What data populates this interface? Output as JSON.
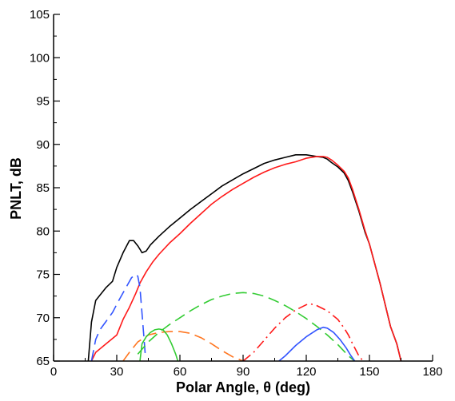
{
  "chart_data": {
    "type": "line",
    "xlabel": "Polar Angle, θ (deg)",
    "ylabel": "PNLT, dB",
    "xlim": [
      0,
      180
    ],
    "ylim": [
      65,
      105
    ],
    "xticks": [
      0,
      30,
      60,
      90,
      120,
      150,
      180
    ],
    "yticks": [
      65,
      70,
      75,
      80,
      85,
      90,
      95,
      100,
      105
    ],
    "grid": false,
    "legend": "none",
    "series": [
      {
        "color": "#000000",
        "dash": "solid",
        "x": [
          16.5,
          18,
          20,
          25,
          28,
          30,
          33,
          36,
          38,
          40,
          41,
          42,
          44,
          46,
          48,
          50,
          55,
          60,
          65,
          70,
          75,
          80,
          85,
          90,
          95,
          100,
          105,
          110,
          115,
          120,
          125,
          128,
          130,
          132,
          135,
          138,
          140,
          142,
          145,
          148,
          150,
          155,
          160,
          163,
          165
        ],
        "y": [
          65.0,
          69.5,
          72.0,
          73.5,
          74.2,
          75.8,
          77.5,
          78.9,
          78.9,
          78.3,
          77.9,
          77.5,
          77.7,
          78.4,
          78.9,
          79.4,
          80.5,
          81.5,
          82.5,
          83.4,
          84.3,
          85.2,
          85.9,
          86.6,
          87.2,
          87.8,
          88.2,
          88.5,
          88.8,
          88.8,
          88.6,
          88.5,
          88.3,
          87.9,
          87.4,
          86.7,
          85.8,
          84.5,
          82.3,
          79.8,
          78.5,
          74.0,
          69.0,
          67.0,
          65.0
        ]
      },
      {
        "color": "#ff1a1a",
        "dash": "solid",
        "x": [
          18,
          20,
          25,
          30,
          33,
          36,
          39,
          41,
          44,
          47,
          50,
          55,
          60,
          65,
          70,
          75,
          80,
          85,
          90,
          95,
          100,
          105,
          110,
          115,
          120,
          125,
          128,
          130,
          132,
          135,
          138,
          140,
          142,
          145,
          148,
          150,
          155,
          160,
          163,
          165
        ],
        "y": [
          65.0,
          66.0,
          67.0,
          68.0,
          69.8,
          71.2,
          72.8,
          74.0,
          75.3,
          76.4,
          77.3,
          78.6,
          79.7,
          80.9,
          82.0,
          83.1,
          84.0,
          84.8,
          85.5,
          86.2,
          86.8,
          87.3,
          87.7,
          88.0,
          88.4,
          88.6,
          88.6,
          88.5,
          88.2,
          87.6,
          86.9,
          86.1,
          84.8,
          82.5,
          80.0,
          78.5,
          74.0,
          69.0,
          67.0,
          65.0
        ]
      },
      {
        "color": "#3355ff",
        "dash": "dash",
        "x": [
          18,
          20,
          22,
          25,
          28,
          31,
          34,
          37,
          39,
          40,
          41,
          42,
          43,
          43.5
        ],
        "y": [
          65.0,
          67.5,
          68.6,
          69.6,
          70.6,
          72.0,
          73.3,
          74.6,
          75.0,
          74.8,
          73.5,
          70.5,
          67.5,
          65.8
        ]
      },
      {
        "color": "#33cc33",
        "dash": "dash",
        "x": [
          40,
          45,
          50,
          55,
          60,
          65,
          70,
          75,
          80,
          85,
          90,
          95,
          100,
          105,
          110,
          115,
          120,
          125,
          130,
          135,
          140,
          144
        ],
        "y": [
          65.8,
          67.2,
          68.3,
          69.2,
          70.0,
          70.8,
          71.5,
          72.1,
          72.5,
          72.8,
          72.9,
          72.8,
          72.5,
          72.0,
          71.4,
          70.7,
          69.9,
          69.0,
          68.0,
          66.9,
          65.6,
          64.8
        ]
      },
      {
        "color": "#ff7722",
        "dash": "dash",
        "x": [
          33,
          36,
          40,
          45,
          50,
          55,
          60,
          65,
          70,
          75,
          80,
          85,
          88,
          90
        ],
        "y": [
          65.0,
          66.0,
          67.2,
          68.0,
          68.3,
          68.4,
          68.4,
          68.2,
          67.7,
          67.0,
          66.2,
          65.5,
          65.2,
          65.0
        ]
      },
      {
        "color": "#33cc33",
        "dash": "solid",
        "x": [
          41,
          42,
          44,
          46,
          48,
          50,
          52,
          54,
          56,
          58,
          59
        ],
        "y": [
          65.0,
          67.0,
          67.8,
          68.3,
          68.6,
          68.7,
          68.6,
          68.0,
          67.0,
          65.8,
          65.0
        ]
      },
      {
        "color": "#ff1a1a",
        "dash": "dashdot",
        "x": [
          90,
          95,
          100,
          105,
          110,
          115,
          120,
          122,
          125,
          130,
          135,
          138,
          140,
          142,
          145,
          147
        ],
        "y": [
          65.0,
          66.0,
          67.4,
          68.8,
          70.0,
          70.9,
          71.5,
          71.6,
          71.4,
          70.8,
          69.8,
          68.8,
          68.0,
          67.0,
          65.6,
          65.0
        ]
      },
      {
        "color": "#3355ff",
        "dash": "solid",
        "x": [
          107,
          110,
          115,
          120,
          125,
          128,
          130,
          133,
          136,
          139,
          141,
          143
        ],
        "y": [
          65.0,
          65.6,
          66.8,
          67.8,
          68.6,
          68.9,
          68.8,
          68.3,
          67.5,
          66.5,
          65.7,
          65.0
        ]
      }
    ]
  }
}
